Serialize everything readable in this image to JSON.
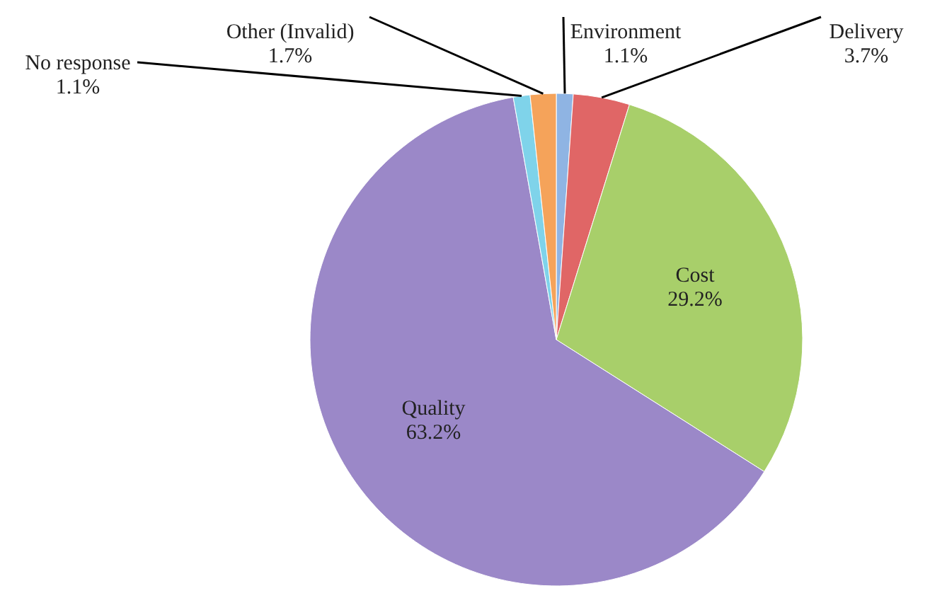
{
  "chart_data": {
    "type": "pie",
    "categories": [
      "Environment",
      "Delivery",
      "Cost",
      "Quality",
      "No response",
      "Other (Invalid)"
    ],
    "values": [
      1.1,
      3.7,
      29.2,
      63.2,
      1.1,
      1.7
    ],
    "value_labels": [
      "1.1%",
      "3.7%",
      "29.2%",
      "63.2%",
      "1.1%",
      "1.7%"
    ],
    "colors": [
      "#8fb4e3",
      "#e06666",
      "#a8cf6a",
      "#9b88c8",
      "#7fd3ea",
      "#f5a35a"
    ]
  }
}
